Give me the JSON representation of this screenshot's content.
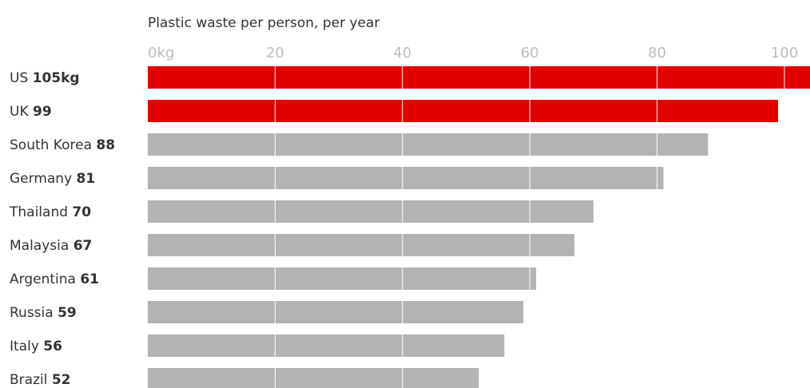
{
  "chart_data": {
    "type": "bar",
    "orientation": "horizontal",
    "title": "",
    "subtitle": "Plastic waste per person, per year",
    "xlabel": "",
    "ylabel": "",
    "xlim": [
      0,
      104
    ],
    "ticks": [
      0,
      20,
      40,
      60,
      80,
      100
    ],
    "tick_labels": [
      "0kg",
      "20",
      "40",
      "60",
      "80",
      "100"
    ],
    "grid": true,
    "colors": {
      "highlight": "#e00000",
      "default": "#b3b3b3",
      "grid": "#ffffff"
    },
    "categories": [
      "US",
      "UK",
      "South Korea",
      "Germany",
      "Thailand",
      "Malaysia",
      "Argentina",
      "Russia",
      "Italy",
      "Brazil"
    ],
    "values": [
      105,
      99,
      88,
      81,
      70,
      67,
      61,
      59,
      56,
      52
    ],
    "value_labels": [
      "105kg",
      "99",
      "88",
      "81",
      "70",
      "67",
      "61",
      "59",
      "56",
      "52"
    ],
    "highlighted": [
      "US",
      "UK"
    ]
  }
}
